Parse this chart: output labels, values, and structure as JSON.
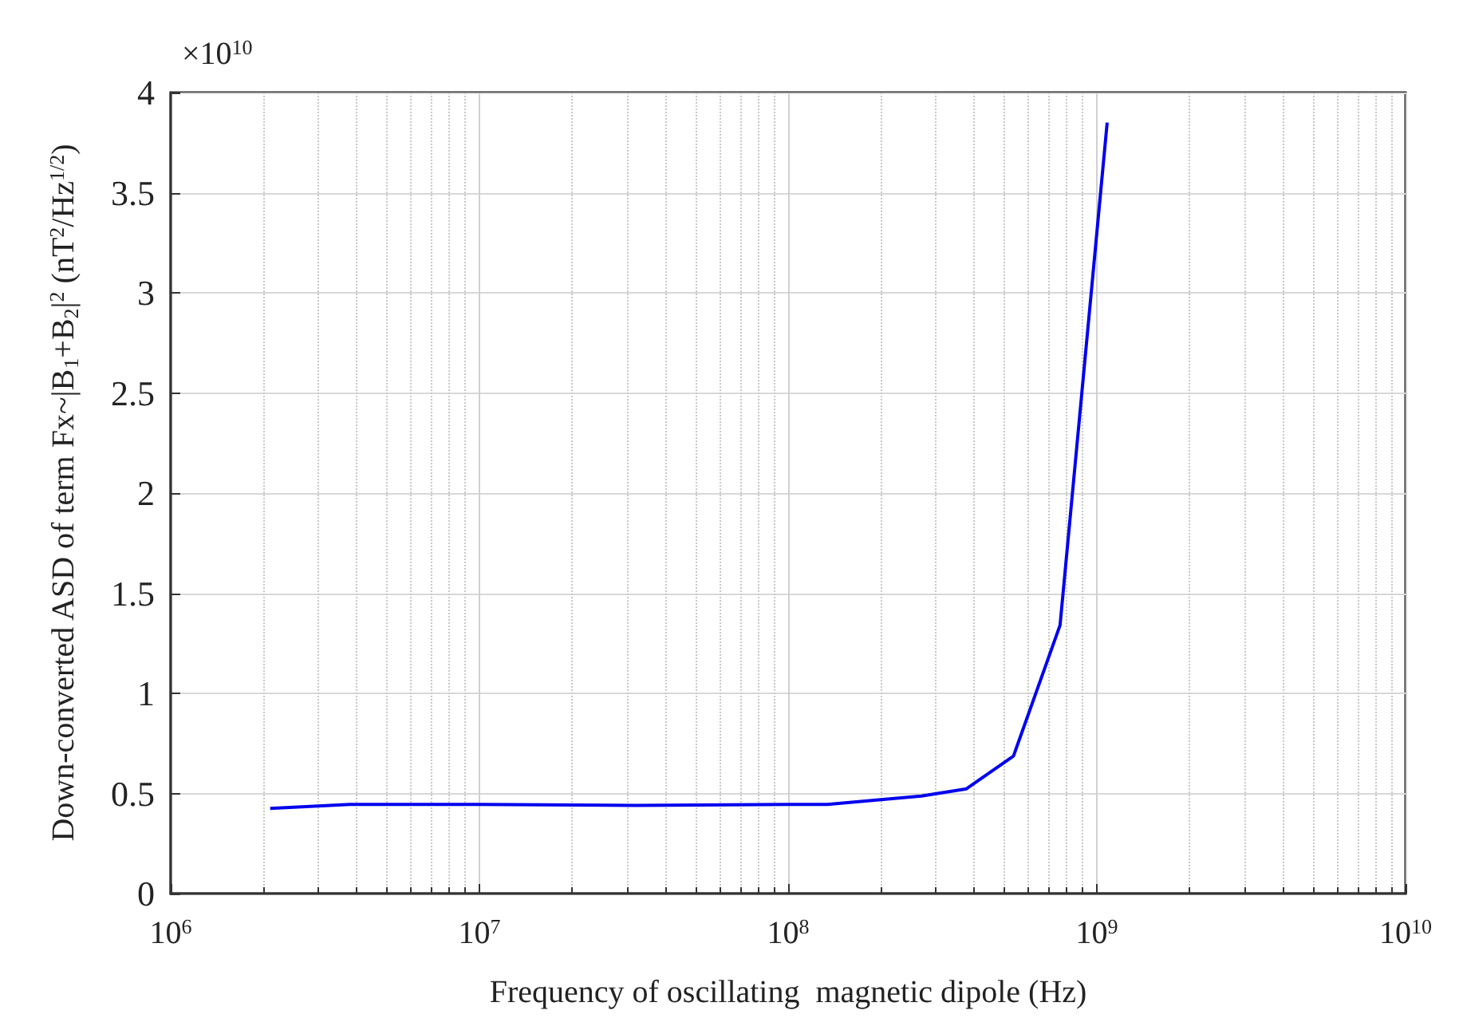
{
  "chart_data": {
    "type": "line",
    "xlabel": "Frequency of oscillating  magnetic dipole (Hz)",
    "ylabel": "Down-converted ASD of term Fx~|B$_{1}$+B$_{2}$|$^{2}$ (nT$^{2}$/Hz$^{1/2}$)",
    "annotations": [
      "×10$^{10}$"
    ],
    "log": "x",
    "xlim": [
      1000000,
      10000000000
    ],
    "xticks": [
      {
        "value": 1000000,
        "label": "10$^{6}$"
      },
      {
        "value": 10000000,
        "label": "10$^{7}$"
      },
      {
        "value": 100000000,
        "label": "10$^{8}$"
      },
      {
        "value": 1000000000,
        "label": "10$^{9}$"
      },
      {
        "value": 10000000000,
        "label": "10$^{10}$"
      }
    ],
    "ylim": [
      0,
      4
    ],
    "yticks": [
      0,
      0.5,
      1,
      1.5,
      2,
      2.5,
      3,
      3.5,
      4
    ],
    "grid": true,
    "x": [
      2100000,
      3800000,
      10000000,
      32000000,
      100000000,
      134000000,
      270000000,
      378000000,
      537000000,
      760000000,
      1080000000
    ],
    "series": [
      {
        "color": "#0000ee",
        "values": [
          0.425,
          0.445,
          0.445,
          0.44,
          0.445,
          0.445,
          0.487,
          0.523,
          0.687,
          1.34,
          3.85
        ]
      }
    ]
  }
}
